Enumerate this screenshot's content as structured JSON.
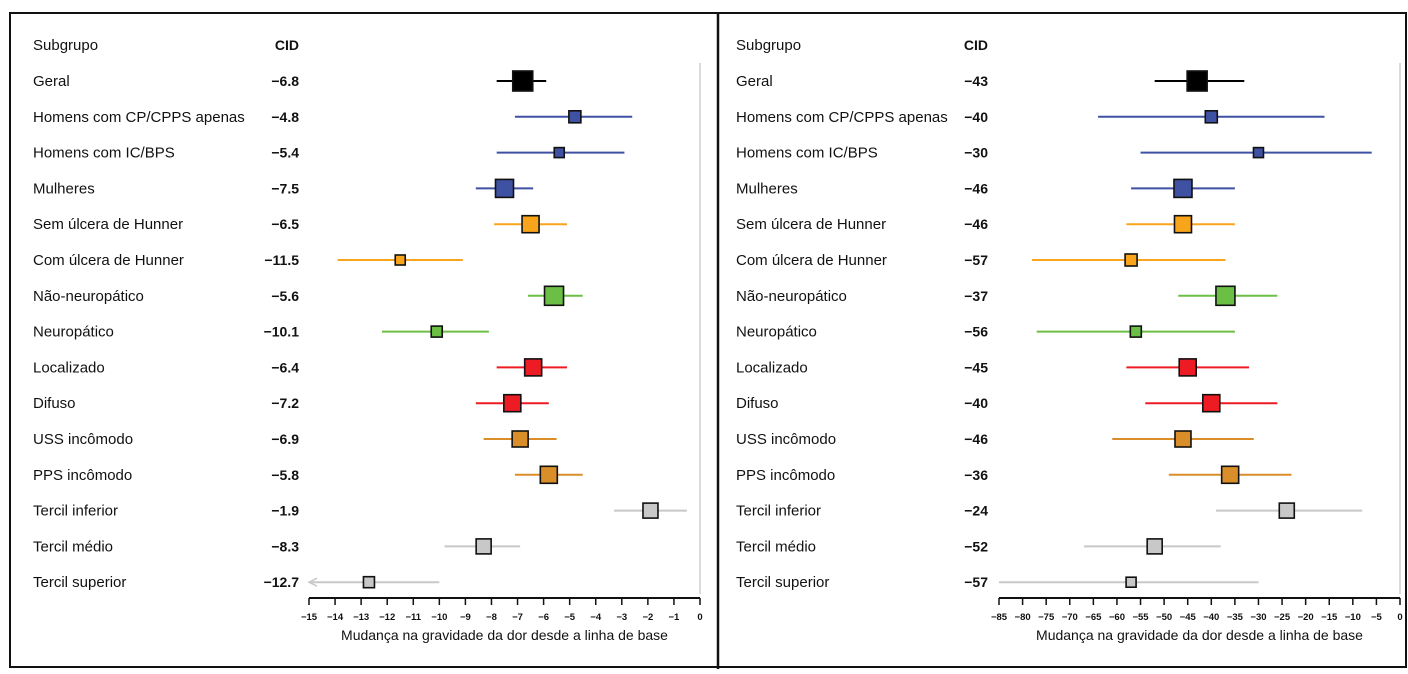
{
  "chart_data": [
    {
      "type": "forest",
      "header_subgroup": "Subgrupo",
      "header_cid": "CID",
      "xlabel": "Mudança na gravidade da dor desde a linha de base",
      "xlim": [
        -15,
        0
      ],
      "xticks": [
        -15,
        -14,
        -13,
        -12,
        -11,
        -10,
        -9,
        -8,
        -7,
        -6,
        -5,
        -4,
        -3,
        -2,
        -1,
        0
      ],
      "xtick_labels": [
        "−15",
        "−14",
        "−13",
        "−12",
        "−11",
        "−10",
        "−9",
        "−8",
        "−7",
        "−6",
        "−5",
        "−4",
        "−3",
        "−2",
        "−1",
        "0"
      ],
      "rows": [
        {
          "label": "Geral",
          "cid": "−6.8",
          "est": -6.8,
          "lo": -7.8,
          "hi": -5.9,
          "color": "#000000",
          "size": 20
        },
        {
          "label": "Homens com CP/CPPS apenas",
          "cid": "−4.8",
          "est": -4.8,
          "lo": -7.1,
          "hi": -2.6,
          "color": "#3f51a3",
          "size": 12
        },
        {
          "label": "Homens com IC/BPS",
          "cid": "−5.4",
          "est": -5.4,
          "lo": -7.8,
          "hi": -2.9,
          "color": "#3f51a3",
          "size": 10
        },
        {
          "label": "Mulheres",
          "cid": "−7.5",
          "est": -7.5,
          "lo": -8.6,
          "hi": -6.4,
          "color": "#3f51a3",
          "size": 18
        },
        {
          "label": "Sem úlcera de Hunner",
          "cid": "−6.5",
          "est": -6.5,
          "lo": -7.9,
          "hi": -5.1,
          "color": "#f9a51c",
          "size": 17
        },
        {
          "label": "Com úlcera de Hunner",
          "cid": "−11.5",
          "est": -11.5,
          "lo": -13.9,
          "hi": -9.1,
          "color": "#f9a51c",
          "size": 10
        },
        {
          "label": "Não-neuropático",
          "cid": "−5.6",
          "est": -5.6,
          "lo": -6.6,
          "hi": -4.5,
          "color": "#6bbf45",
          "size": 19
        },
        {
          "label": "Neuropático",
          "cid": "−10.1",
          "est": -10.1,
          "lo": -12.2,
          "hi": -8.1,
          "color": "#6bbf45",
          "size": 11
        },
        {
          "label": "Localizado",
          "cid": "−6.4",
          "est": -6.4,
          "lo": -7.8,
          "hi": -5.1,
          "color": "#ed1c24",
          "size": 17
        },
        {
          "label": "Difuso",
          "cid": "−7.2",
          "est": -7.2,
          "lo": -8.6,
          "hi": -5.8,
          "color": "#ed1c24",
          "size": 17
        },
        {
          "label": "USS incômodo",
          "cid": "−6.9",
          "est": -6.9,
          "lo": -8.3,
          "hi": -5.5,
          "color": "#d98e2a",
          "size": 16
        },
        {
          "label": "PPS incômodo",
          "cid": "−5.8",
          "est": -5.8,
          "lo": -7.1,
          "hi": -4.5,
          "color": "#d98e2a",
          "size": 17
        },
        {
          "label": "Tercil inferior",
          "cid": "−1.9",
          "est": -1.9,
          "lo": -3.3,
          "hi": -0.5,
          "color": "#c8c8c8",
          "size": 15
        },
        {
          "label": "Tercil médio",
          "cid": "−8.3",
          "est": -8.3,
          "lo": -9.8,
          "hi": -6.9,
          "color": "#c8c8c8",
          "size": 15
        },
        {
          "label": "Tercil superior",
          "cid": "−12.7",
          "est": -12.7,
          "lo": -15.0,
          "hi": -10.0,
          "color": "#c8c8c8",
          "size": 11,
          "arrow_left": true
        }
      ]
    },
    {
      "type": "forest",
      "header_subgroup": "Subgrupo",
      "header_cid": "CID",
      "xlabel": "Mudança na gravidade da dor desde a linha de base",
      "xlim": [
        -85,
        0
      ],
      "xticks": [
        -85,
        -80,
        -75,
        -70,
        -65,
        -60,
        -55,
        -50,
        -45,
        -40,
        -35,
        -30,
        -25,
        -20,
        -15,
        -10,
        -5,
        0
      ],
      "xtick_labels": [
        "−85",
        "−80",
        "−75",
        "−70",
        "−65",
        "−60",
        "−55",
        "−50",
        "−45",
        "−40",
        "−35",
        "−30",
        "−25",
        "−20",
        "−15",
        "−10",
        "−5",
        "0"
      ],
      "rows": [
        {
          "label": "Geral",
          "cid": "−43",
          "est": -43,
          "lo": -52,
          "hi": -33,
          "color": "#000000",
          "size": 20
        },
        {
          "label": "Homens com CP/CPPS apenas",
          "cid": "−40",
          "est": -40,
          "lo": -64,
          "hi": -16,
          "color": "#3f51a3",
          "size": 12
        },
        {
          "label": "Homens com IC/BPS",
          "cid": "−30",
          "est": -30,
          "lo": -55,
          "hi": -6,
          "color": "#3f51a3",
          "size": 10
        },
        {
          "label": "Mulheres",
          "cid": "−46",
          "est": -46,
          "lo": -57,
          "hi": -35,
          "color": "#3f51a3",
          "size": 18
        },
        {
          "label": "Sem úlcera de Hunner",
          "cid": "−46",
          "est": -46,
          "lo": -58,
          "hi": -35,
          "color": "#f9a51c",
          "size": 17
        },
        {
          "label": "Com úlcera de Hunner",
          "cid": "−57",
          "est": -57,
          "lo": -78,
          "hi": -37,
          "color": "#f9a51c",
          "size": 12
        },
        {
          "label": "Não-neuropático",
          "cid": "−37",
          "est": -37,
          "lo": -47,
          "hi": -26,
          "color": "#6bbf45",
          "size": 19
        },
        {
          "label": "Neuropático",
          "cid": "−56",
          "est": -56,
          "lo": -77,
          "hi": -35,
          "color": "#6bbf45",
          "size": 11
        },
        {
          "label": "Localizado",
          "cid": "−45",
          "est": -45,
          "lo": -58,
          "hi": -32,
          "color": "#ed1c24",
          "size": 17
        },
        {
          "label": "Difuso",
          "cid": "−40",
          "est": -40,
          "lo": -54,
          "hi": -26,
          "color": "#ed1c24",
          "size": 17
        },
        {
          "label": "USS incômodo",
          "cid": "−46",
          "est": -46,
          "lo": -61,
          "hi": -31,
          "color": "#d98e2a",
          "size": 16
        },
        {
          "label": "PPS incômodo",
          "cid": "−36",
          "est": -36,
          "lo": -49,
          "hi": -23,
          "color": "#d98e2a",
          "size": 17
        },
        {
          "label": "Tercil inferior",
          "cid": "−24",
          "est": -24,
          "lo": -39,
          "hi": -8,
          "color": "#c8c8c8",
          "size": 15
        },
        {
          "label": "Tercil médio",
          "cid": "−52",
          "est": -52,
          "lo": -67,
          "hi": -38,
          "color": "#c8c8c8",
          "size": 15
        },
        {
          "label": "Tercil superior",
          "cid": "−57",
          "est": -57,
          "lo": -85,
          "hi": -30,
          "color": "#c8c8c8",
          "size": 10
        }
      ]
    }
  ]
}
